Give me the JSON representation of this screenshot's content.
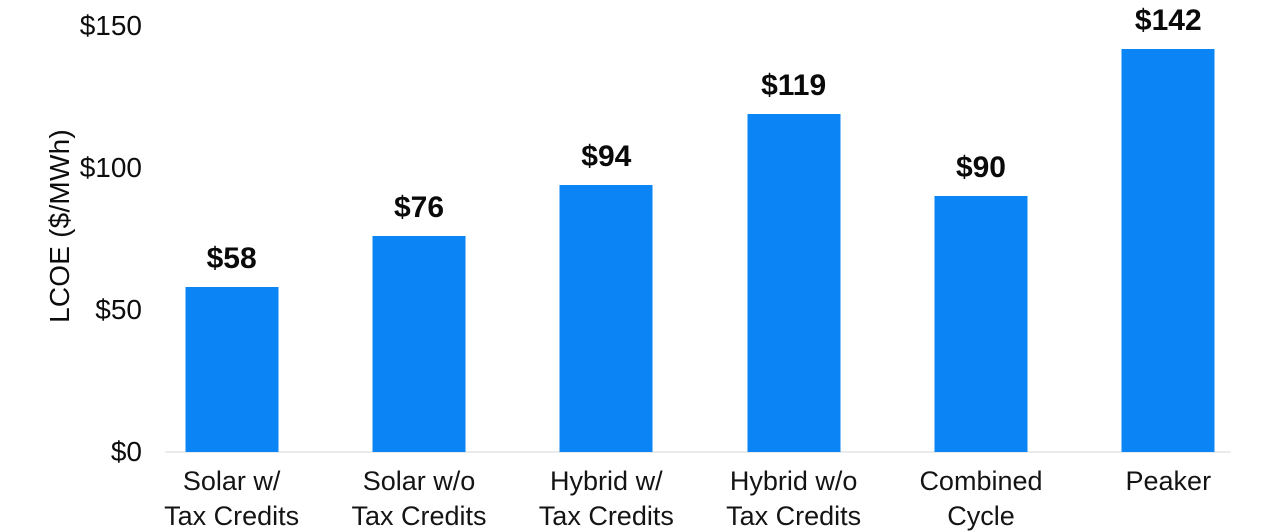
{
  "chart_data": {
    "type": "bar",
    "title": "",
    "xlabel": "",
    "ylabel": "LCOE ($/MWh)",
    "ylim": [
      0,
      150
    ],
    "grid": false,
    "legend": false,
    "bar_color": "#0b84f6",
    "axis_line_color": "#ebebeb",
    "background_color": "#ffffff",
    "text_color": "#0d0d0d",
    "yticks": [
      {
        "value": 0,
        "label": "$0"
      },
      {
        "value": 50,
        "label": "$50"
      },
      {
        "value": 100,
        "label": "$100"
      },
      {
        "value": 150,
        "label": "$150"
      }
    ],
    "categories": [
      "Solar w/ Tax Credits",
      "Solar w/o Tax Credits",
      "Hybrid w/ Tax Credits",
      "Hybrid w/o Tax Credits",
      "Combined Cycle",
      "Peaker"
    ],
    "values": [
      58,
      76,
      94,
      119,
      90,
      142
    ],
    "bars": [
      {
        "category_lines": [
          "Solar w/",
          "Tax Credits"
        ],
        "value": 58,
        "label": "$58"
      },
      {
        "category_lines": [
          "Solar w/o",
          "Tax Credits"
        ],
        "value": 76,
        "label": "$76"
      },
      {
        "category_lines": [
          "Hybrid w/",
          "Tax Credits"
        ],
        "value": 94,
        "label": "$94"
      },
      {
        "category_lines": [
          "Hybrid w/o",
          "Tax Credits"
        ],
        "value": 119,
        "label": "$119"
      },
      {
        "category_lines": [
          "Combined",
          "Cycle"
        ],
        "value": 90,
        "label": "$90"
      },
      {
        "category_lines": [
          "Peaker"
        ],
        "value": 142,
        "label": "$142"
      }
    ]
  }
}
